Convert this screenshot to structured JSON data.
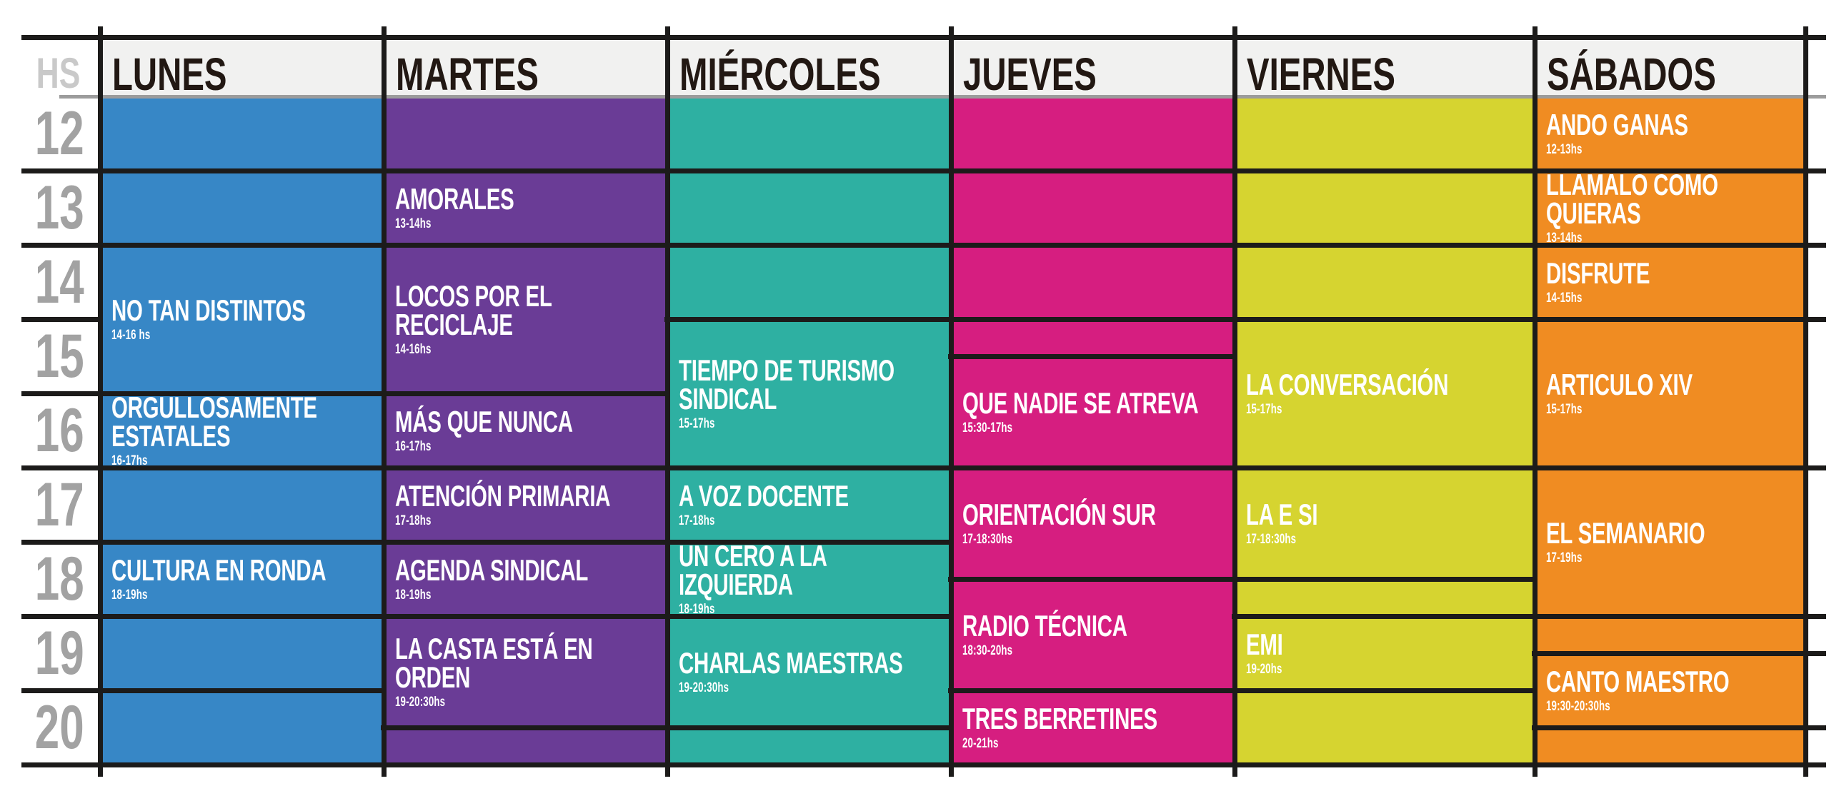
{
  "hs_label": "HS",
  "hours": [
    "12",
    "13",
    "14",
    "15",
    "16",
    "17",
    "18",
    "19",
    "20"
  ],
  "colors": {
    "grid_line": "#1c1b1a",
    "header_underline": "#9c9c9c",
    "header_band": "#f1f1f0",
    "day_text": "#221813",
    "hs_text": "#c9c9c9",
    "hour_text": "#a2a2a2"
  },
  "days": [
    {
      "name": "LUNES",
      "color": "#3787c6",
      "programs": [
        {
          "start": 12,
          "end": 13
        },
        {
          "start": 13,
          "end": 14
        },
        {
          "start": 14,
          "end": 16,
          "title": "NO TAN DISTINTOS",
          "time": "14-16 hs"
        },
        {
          "start": 16,
          "end": 17,
          "title": "ORGULLOSAMENTE ESTATALES",
          "time": "16-17hs"
        },
        {
          "start": 17,
          "end": 18
        },
        {
          "start": 18,
          "end": 19,
          "title": "CULTURA EN RONDA",
          "time": "18-19hs"
        },
        {
          "start": 19,
          "end": 20
        },
        {
          "start": 20,
          "end": 21
        }
      ]
    },
    {
      "name": "MARTES",
      "color": "#6a3c96",
      "programs": [
        {
          "start": 12,
          "end": 13
        },
        {
          "start": 13,
          "end": 14,
          "title": "AMORALES",
          "time": "13-14hs"
        },
        {
          "start": 14,
          "end": 16,
          "title": "LOCOS POR EL RECICLAJE",
          "time": "14-16hs"
        },
        {
          "start": 16,
          "end": 17,
          "title": "MÁS QUE NUNCA",
          "time": "16-17hs"
        },
        {
          "start": 17,
          "end": 18,
          "title": "ATENCIÓN PRIMARIA",
          "time": "17-18hs"
        },
        {
          "start": 18,
          "end": 19,
          "title": "AGENDA SINDICAL",
          "time": "18-19hs"
        },
        {
          "start": 19,
          "end": 20.5,
          "title": "LA CASTA ESTÁ EN ORDEN",
          "time": "19-20:30hs"
        },
        {
          "start": 20.5,
          "end": 21
        }
      ]
    },
    {
      "name": "MIÉRCOLES",
      "color": "#2eb0a2",
      "programs": [
        {
          "start": 12,
          "end": 13
        },
        {
          "start": 13,
          "end": 14
        },
        {
          "start": 14,
          "end": 15
        },
        {
          "start": 15,
          "end": 17,
          "title": "TIEMPO DE TURISMO SINDICAL",
          "time": "15-17hs"
        },
        {
          "start": 17,
          "end": 18,
          "title": "A VOZ DOCENTE",
          "time": "17-18hs"
        },
        {
          "start": 18,
          "end": 19,
          "title": "UN CERO A LA IZQUIERDA",
          "time": "18-19hs"
        },
        {
          "start": 19,
          "end": 20.5,
          "title": "CHARLAS MAESTRAS",
          "time": "19-20:30hs"
        },
        {
          "start": 20.5,
          "end": 21
        }
      ]
    },
    {
      "name": "JUEVES",
      "color": "#d61e80",
      "programs": [
        {
          "start": 12,
          "end": 13
        },
        {
          "start": 13,
          "end": 14
        },
        {
          "start": 14,
          "end": 15
        },
        {
          "start": 15,
          "end": 15.5
        },
        {
          "start": 15.5,
          "end": 17,
          "title": "QUE NADIE SE ATREVA",
          "time": "15:30-17hs"
        },
        {
          "start": 17,
          "end": 18.5,
          "title": "ORIENTACIÓN SUR",
          "time": "17-18:30hs"
        },
        {
          "start": 18.5,
          "end": 20,
          "title": "RADIO TÉCNICA",
          "time": "18:30-20hs"
        },
        {
          "start": 20,
          "end": 21,
          "title": "TRES BERRETINES",
          "time": "20-21hs"
        }
      ]
    },
    {
      "name": "VIERNES",
      "color": "#d6d430",
      "programs": [
        {
          "start": 12,
          "end": 13
        },
        {
          "start": 13,
          "end": 14
        },
        {
          "start": 14,
          "end": 15
        },
        {
          "start": 15,
          "end": 17,
          "title": "LA CONVERSACIÓN",
          "time": "15-17hs"
        },
        {
          "start": 17,
          "end": 18.5,
          "title": "LA E SI",
          "time": "17-18:30hs"
        },
        {
          "start": 18.5,
          "end": 19
        },
        {
          "start": 19,
          "end": 20,
          "title": "EMI",
          "time": "19-20hs"
        },
        {
          "start": 20,
          "end": 21
        }
      ]
    },
    {
      "name": "SÁBADOS",
      "color": "#f08c22",
      "programs": [
        {
          "start": 12,
          "end": 13,
          "title": "ANDO GANAS",
          "time": "12-13hs"
        },
        {
          "start": 13,
          "end": 14,
          "title": "LLAMALO COMO QUIERAS",
          "time": "13-14hs"
        },
        {
          "start": 14,
          "end": 15,
          "title": "DISFRUTE",
          "time": "14-15hs"
        },
        {
          "start": 15,
          "end": 17,
          "title": "ARTICULO XIV",
          "time": "15-17hs"
        },
        {
          "start": 17,
          "end": 19,
          "title": "EL SEMANARIO",
          "time": "17-19hs"
        },
        {
          "start": 19,
          "end": 19.5
        },
        {
          "start": 19.5,
          "end": 20.5,
          "title": "CANTO MAESTRO",
          "time": "19:30-20:30hs"
        },
        {
          "start": 20.5,
          "end": 21
        }
      ]
    }
  ]
}
